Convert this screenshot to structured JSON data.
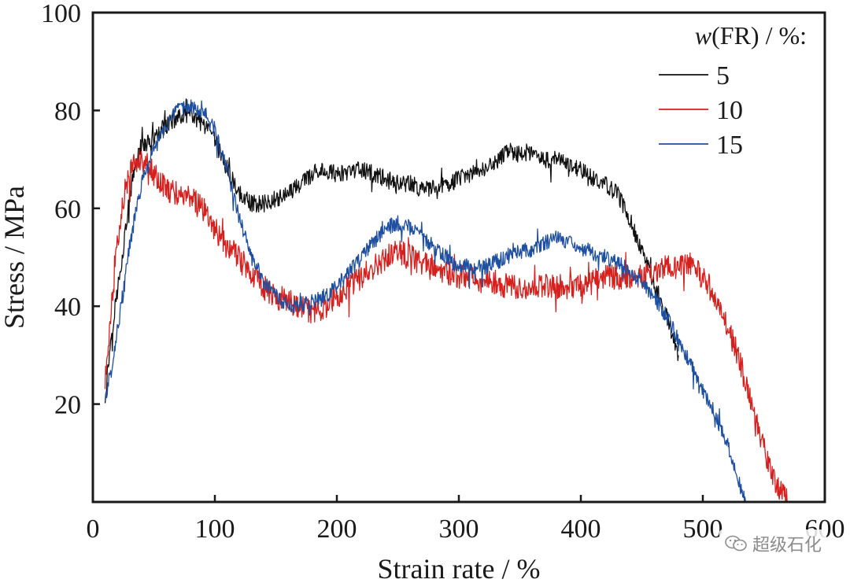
{
  "chart_data": {
    "type": "line",
    "title": "",
    "xlabel": "Strain rate / %",
    "ylabel": "Stress / MPa",
    "xlim": [
      0,
      600
    ],
    "ylim": [
      0,
      100
    ],
    "x_ticks": [
      0,
      100,
      200,
      300,
      400,
      500,
      600
    ],
    "y_ticks": [
      20,
      40,
      60,
      80,
      100
    ],
    "grid": false,
    "legend_title": "w(FR) / %:",
    "legend_position": "top-right",
    "series": [
      {
        "name": "5",
        "color": "#111111",
        "x": [
          10,
          15,
          20,
          25,
          30,
          35,
          40,
          50,
          60,
          70,
          80,
          90,
          100,
          110,
          120,
          130,
          140,
          150,
          160,
          170,
          180,
          190,
          200,
          210,
          220,
          230,
          240,
          250,
          260,
          270,
          280,
          290,
          300,
          310,
          320,
          330,
          340,
          350,
          360,
          370,
          380,
          390,
          400,
          410,
          420,
          430,
          440,
          450,
          460,
          470,
          480
        ],
        "y": [
          21,
          34,
          43,
          52,
          62,
          69,
          73,
          74,
          77,
          79,
          79,
          77,
          74,
          68,
          63,
          61,
          61,
          62,
          63,
          65,
          67,
          68,
          67,
          67,
          68,
          67,
          66,
          65,
          65,
          64,
          64,
          65,
          66,
          67,
          68,
          69,
          72,
          71,
          71,
          70,
          70,
          69,
          68,
          66,
          65,
          63,
          58,
          51,
          45,
          38,
          30
        ],
        "noise": 1.8
      },
      {
        "name": "10",
        "color": "#d6201e",
        "x": [
          10,
          15,
          20,
          25,
          30,
          35,
          40,
          45,
          50,
          60,
          70,
          80,
          90,
          100,
          110,
          120,
          130,
          140,
          150,
          160,
          170,
          180,
          190,
          200,
          210,
          220,
          230,
          240,
          250,
          260,
          270,
          280,
          290,
          300,
          310,
          320,
          330,
          340,
          350,
          360,
          370,
          380,
          390,
          400,
          410,
          420,
          430,
          440,
          450,
          460,
          470,
          480,
          490,
          500,
          510,
          520,
          530,
          540,
          550,
          560,
          570
        ],
        "y": [
          24,
          40,
          52,
          62,
          67,
          70,
          70,
          69,
          67,
          64,
          63,
          62,
          60,
          56,
          52,
          50,
          47,
          44,
          42,
          41,
          40,
          39,
          40,
          42,
          44,
          46,
          48,
          50,
          51,
          50,
          49,
          48,
          47,
          46,
          46,
          45,
          45,
          44,
          44,
          44,
          44,
          44,
          44,
          44,
          45,
          46,
          46,
          46,
          46,
          47,
          48,
          48,
          48,
          46,
          42,
          36,
          29,
          20,
          11,
          4,
          0
        ],
        "noise": 2.6
      },
      {
        "name": "15",
        "color": "#1f4fa0",
        "x": [
          10,
          15,
          20,
          25,
          30,
          35,
          40,
          50,
          60,
          70,
          80,
          90,
          100,
          110,
          120,
          130,
          140,
          150,
          160,
          170,
          180,
          190,
          200,
          210,
          220,
          230,
          240,
          250,
          260,
          270,
          280,
          290,
          300,
          310,
          320,
          330,
          340,
          350,
          360,
          370,
          380,
          390,
          400,
          410,
          420,
          430,
          440,
          450,
          460,
          470,
          480,
          490,
          500,
          510,
          520,
          530,
          535
        ],
        "y": [
          21,
          27,
          35,
          43,
          52,
          59,
          65,
          72,
          77,
          80,
          81,
          80,
          76,
          68,
          58,
          50,
          45,
          42,
          40,
          40,
          41,
          42,
          44,
          47,
          50,
          53,
          56,
          57,
          56,
          54,
          52,
          50,
          48,
          48,
          48,
          49,
          50,
          51,
          52,
          53,
          54,
          53,
          52,
          51,
          50,
          49,
          47,
          45,
          42,
          38,
          33,
          28,
          23,
          18,
          12,
          4,
          0
        ],
        "noise": 1.6
      }
    ]
  },
  "watermark": {
    "text": "超级石化",
    "icon": "wechat-icon"
  }
}
